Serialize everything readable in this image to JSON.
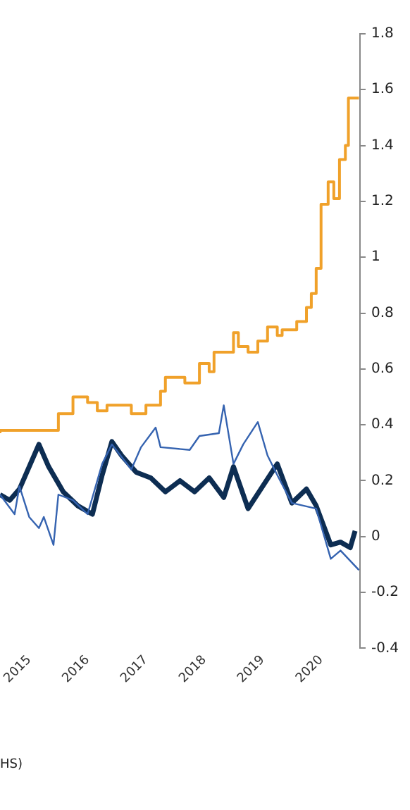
{
  "chart_data": {
    "type": "line",
    "xlim": [
      "2014-07",
      "2020-09"
    ],
    "xticks": [
      "2015",
      "2016",
      "2017",
      "2018",
      "2019",
      "2020"
    ],
    "ylim": [
      -0.4,
      1.8
    ],
    "yticks": [
      -0.4,
      -0.2,
      0,
      0.2,
      0.4,
      0.6,
      0.8,
      1,
      1.2,
      1.4,
      1.6,
      1.8
    ],
    "grid": false,
    "legend": false,
    "marker": "none",
    "annotations": [
      "HS)"
    ],
    "series": [
      {
        "type": "step",
        "color": "#f0a12a",
        "x": [
          "2014-07",
          "2015-07",
          "2015-10",
          "2016-01",
          "2016-03",
          "2016-05",
          "2016-10",
          "2017-01",
          "2017-04",
          "2017-05",
          "2017-09",
          "2017-12",
          "2018-02",
          "2018-03",
          "2018-07",
          "2018-08",
          "2018-10",
          "2018-12",
          "2019-02",
          "2019-04",
          "2019-05",
          "2019-08",
          "2019-10",
          "2019-11",
          "2019-12",
          "2020-01",
          "2020-02-15",
          "2020-03-20",
          "2020-04-25",
          "2020-06-01",
          "2020-06-20",
          "2020-07-28",
          "2020-08-25"
        ],
        "values": [
          0.37,
          0.38,
          0.44,
          0.5,
          0.48,
          0.45,
          0.47,
          0.44,
          0.47,
          0.52,
          0.57,
          0.55,
          0.62,
          0.59,
          0.66,
          0.73,
          0.68,
          0.66,
          0.7,
          0.75,
          0.72,
          0.74,
          0.77,
          0.82,
          0.87,
          0.96,
          1.19,
          1.27,
          1.21,
          1.35,
          1.4,
          1.57,
          1.57
        ]
      },
      {
        "type": "line",
        "color": "#3563b0",
        "x": [
          "2014-07",
          "2014-10",
          "2014-11",
          "2015-01",
          "2015-03",
          "2015-04",
          "2015-06",
          "2015-07",
          "2015-10",
          "2016-01",
          "2016-04",
          "2016-06",
          "2016-10",
          "2016-12",
          "2017-03",
          "2017-04",
          "2017-10",
          "2017-12",
          "2018-04",
          "2018-05",
          "2018-07",
          "2018-09",
          "2018-12",
          "2019-02",
          "2019-04",
          "2019-07",
          "2019-12",
          "2020-03",
          "2020-05",
          "2020-08-25"
        ],
        "values": [
          0.15,
          0.08,
          0.18,
          0.07,
          0.03,
          0.07,
          -0.03,
          0.15,
          0.13,
          0.08,
          0.26,
          0.33,
          0.24,
          0.32,
          0.39,
          0.32,
          0.31,
          0.36,
          0.37,
          0.47,
          0.26,
          0.33,
          0.41,
          0.29,
          0.22,
          0.12,
          0.1,
          -0.08,
          -0.05,
          -0.12
        ]
      },
      {
        "type": "line",
        "color": "#0d2d52",
        "x": [
          "2014-07",
          "2014-09",
          "2014-11",
          "2015-03",
          "2015-05",
          "2015-08",
          "2015-11",
          "2016-02",
          "2016-04",
          "2016-06",
          "2016-08",
          "2016-11",
          "2017-02",
          "2017-05",
          "2017-08",
          "2017-11",
          "2018-02",
          "2018-05",
          "2018-07",
          "2018-10",
          "2019-01",
          "2019-04",
          "2019-07",
          "2019-10",
          "2019-12",
          "2020-03",
          "2020-05",
          "2020-07",
          "2020-08"
        ],
        "values": [
          0.15,
          0.13,
          0.17,
          0.33,
          0.25,
          0.16,
          0.11,
          0.08,
          0.22,
          0.34,
          0.29,
          0.23,
          0.21,
          0.16,
          0.2,
          0.16,
          0.21,
          0.14,
          0.25,
          0.1,
          0.18,
          0.26,
          0.12,
          0.17,
          0.11,
          -0.03,
          -0.02,
          -0.04,
          0.02
        ]
      }
    ]
  }
}
